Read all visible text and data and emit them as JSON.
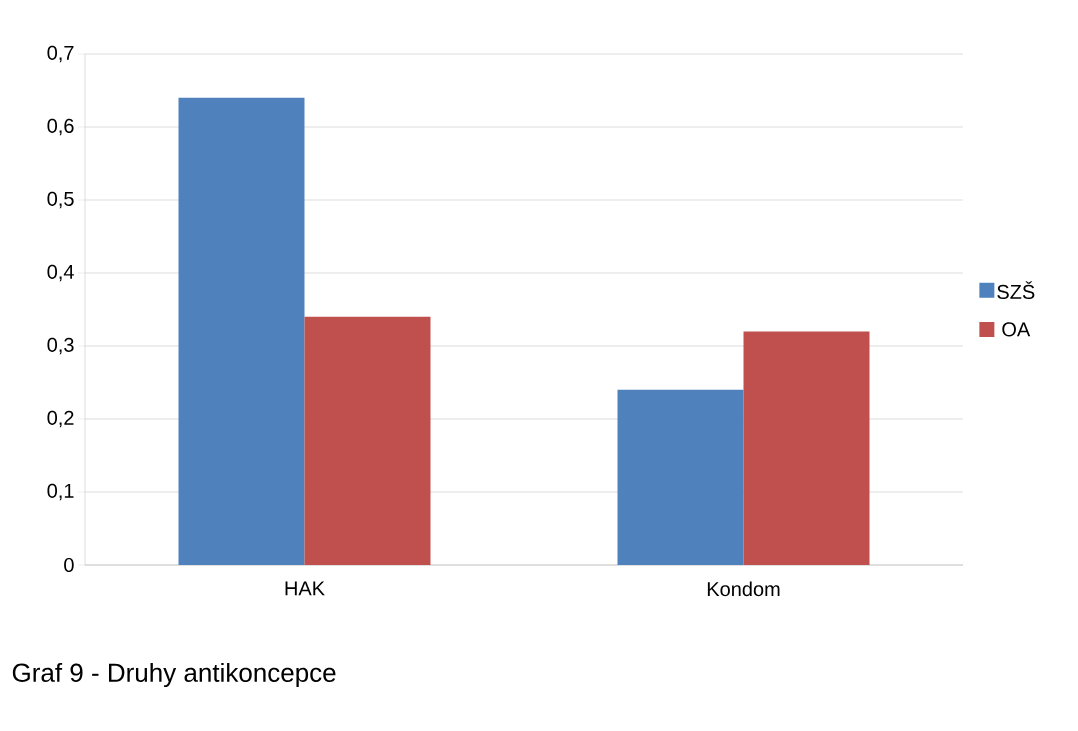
{
  "chart_data": {
    "type": "bar",
    "categories": [
      "HAK",
      "Kondom"
    ],
    "series": [
      {
        "name": "SZŠ",
        "color": "#4f81bd",
        "values": [
          0.64,
          0.24
        ]
      },
      {
        "name": "OA",
        "color": "#c0504d",
        "values": [
          0.34,
          0.32
        ]
      }
    ],
    "ylim": [
      0,
      0.7
    ],
    "yticks": [
      0,
      {
        "value": 0.1,
        "label": "0,1"
      },
      {
        "value": 0.2,
        "label": "0,2"
      },
      {
        "value": 0.3,
        "label": "0,3"
      },
      {
        "value": 0.4,
        "label": "0,4"
      },
      {
        "value": 0.5,
        "label": "0,5"
      },
      {
        "value": 0.6,
        "label": "0,6"
      },
      {
        "value": 0.7,
        "label": "0,7"
      }
    ],
    "grid": "y",
    "legend": "right",
    "annotations": [
      "Graf 9 - Druhy antikoncepce"
    ]
  }
}
